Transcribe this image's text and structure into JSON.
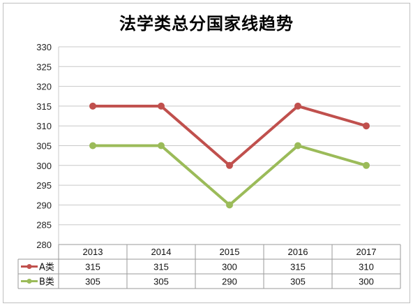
{
  "chart_data": {
    "type": "line",
    "title": "法学类总分国家线趋势",
    "categories": [
      "2013",
      "2014",
      "2015",
      "2016",
      "2017"
    ],
    "series": [
      {
        "name": "A类",
        "values": [
          315,
          315,
          300,
          315,
          310
        ],
        "color": "#c0504d"
      },
      {
        "name": "B类",
        "values": [
          305,
          305,
          290,
          305,
          300
        ],
        "color": "#9bbb59"
      }
    ],
    "ylim": [
      280,
      330
    ],
    "yticks": [
      280,
      285,
      290,
      295,
      300,
      305,
      310,
      315,
      320,
      325,
      330
    ],
    "grid": true,
    "legend": "data-table-left"
  }
}
